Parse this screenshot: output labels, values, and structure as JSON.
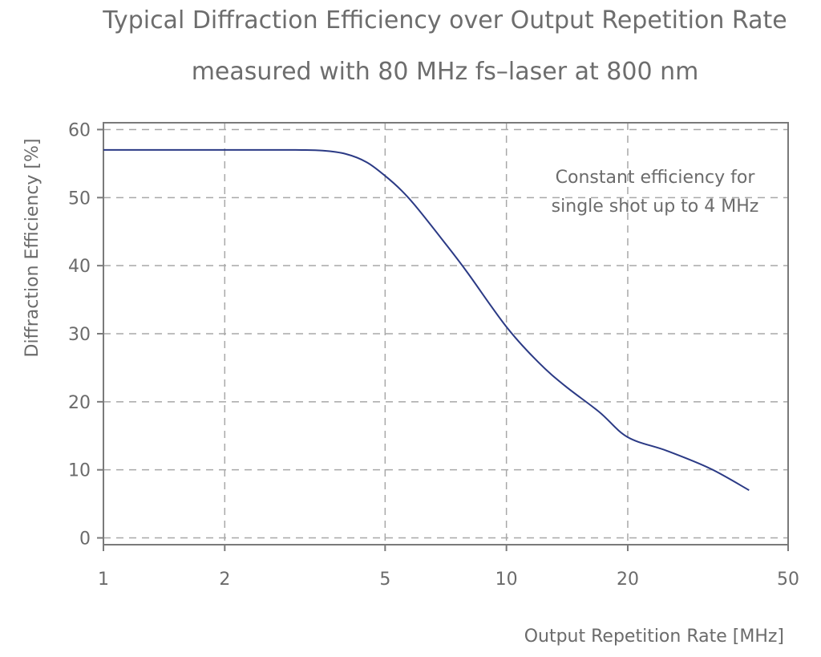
{
  "chart_data": {
    "type": "line",
    "title": "Typical Diffraction Efficiency over Output Repetition Rate",
    "subtitle": "measured with 80 MHz fs–laser at 800 nm",
    "xlabel": "Output Repetition Rate [MHz]",
    "ylabel": "Diffraction Efficiency [%]",
    "xscale": "log",
    "xlim": [
      1,
      50
    ],
    "ylim": [
      -1,
      61
    ],
    "xticks": [
      1,
      2,
      5,
      10,
      20,
      50
    ],
    "xtick_labels": [
      "1",
      "2",
      "5",
      "10",
      "20",
      "50"
    ],
    "yticks": [
      0,
      10,
      20,
      30,
      40,
      50,
      60
    ],
    "ytick_labels": [
      "0",
      "10",
      "20",
      "30",
      "40",
      "50",
      "60"
    ],
    "grid": true,
    "annotation": [
      "Constant efficiency for",
      "single shot up to 4 MHz"
    ],
    "series": [
      {
        "color": "#2b3a85",
        "x": [
          1,
          2,
          3,
          3.5,
          4,
          4.5,
          5,
          5.5,
          6,
          7,
          8,
          10,
          12,
          14,
          17,
          20,
          25,
          32,
          40
        ],
        "y": [
          57,
          57,
          57,
          56.9,
          56.4,
          55.2,
          53.2,
          51,
          48.5,
          43.5,
          39,
          31,
          25.8,
          22.3,
          18.5,
          14.8,
          12.8,
          10.2,
          7
        ]
      }
    ]
  }
}
